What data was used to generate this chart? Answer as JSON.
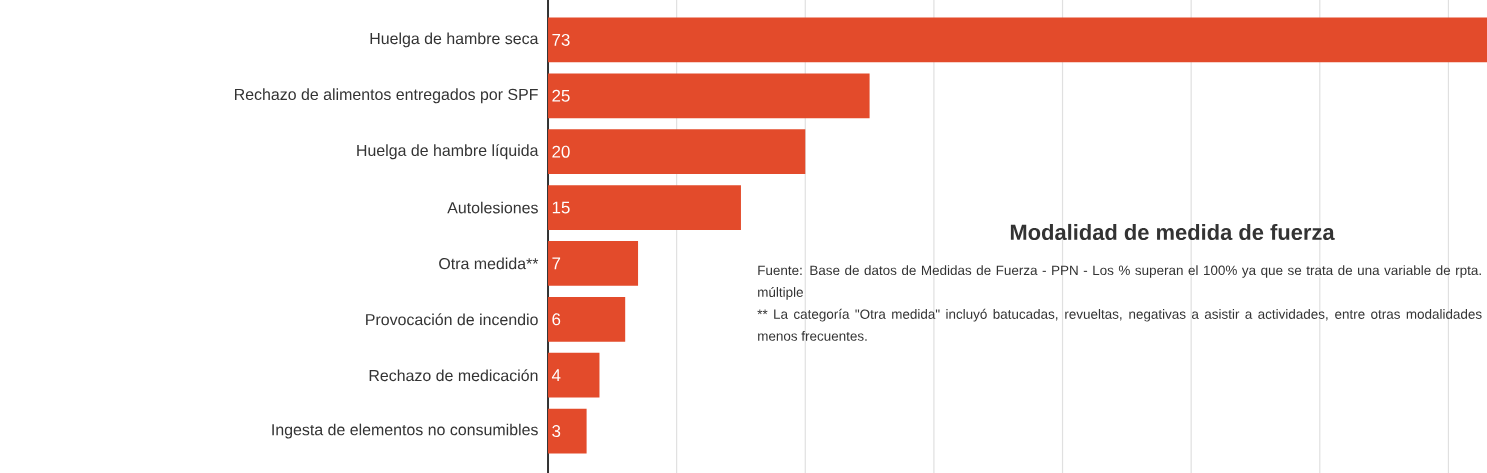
{
  "chart_data": {
    "type": "bar",
    "orientation": "horizontal",
    "title": "Modalidad de medida de fuerza",
    "categories": [
      "Huelga de hambre seca",
      "Rechazo de alimentos entregados por SPF",
      "Huelga de hambre líquida",
      "Autolesiones",
      "Otra medida**",
      "Provocación de incendio",
      "Rechazo de medicación",
      "Ingesta de elementos no consumibles"
    ],
    "values": [
      73,
      25,
      20,
      15,
      7,
      6,
      4,
      3
    ],
    "value_labels": [
      "73",
      "25",
      "20",
      "15",
      "7",
      "6",
      "4",
      "3"
    ],
    "color": "#e34b2b",
    "xlim": [
      0,
      73
    ],
    "xticks": [
      {
        "value": 10,
        "label": null
      },
      {
        "value": 20,
        "label": null
      },
      {
        "value": 30,
        "label": null
      },
      {
        "value": 40,
        "label": null
      },
      {
        "value": 50,
        "label": null
      },
      {
        "value": 60,
        "label": null
      },
      {
        "value": 70,
        "label": null
      }
    ],
    "grid": "x",
    "tick_labels": "y",
    "annotations": [
      "Fuente: Base de datos de Medidas de Fuerza - PPN -  Los % superan el 100% ya que se trata de una variable de rpta. múltiple",
      "** La categoría \"Otra medida\" incluyó batucadas, revueltas, negativas a asistir a actividades, entre otras modalidades menos frecuentes."
    ]
  }
}
